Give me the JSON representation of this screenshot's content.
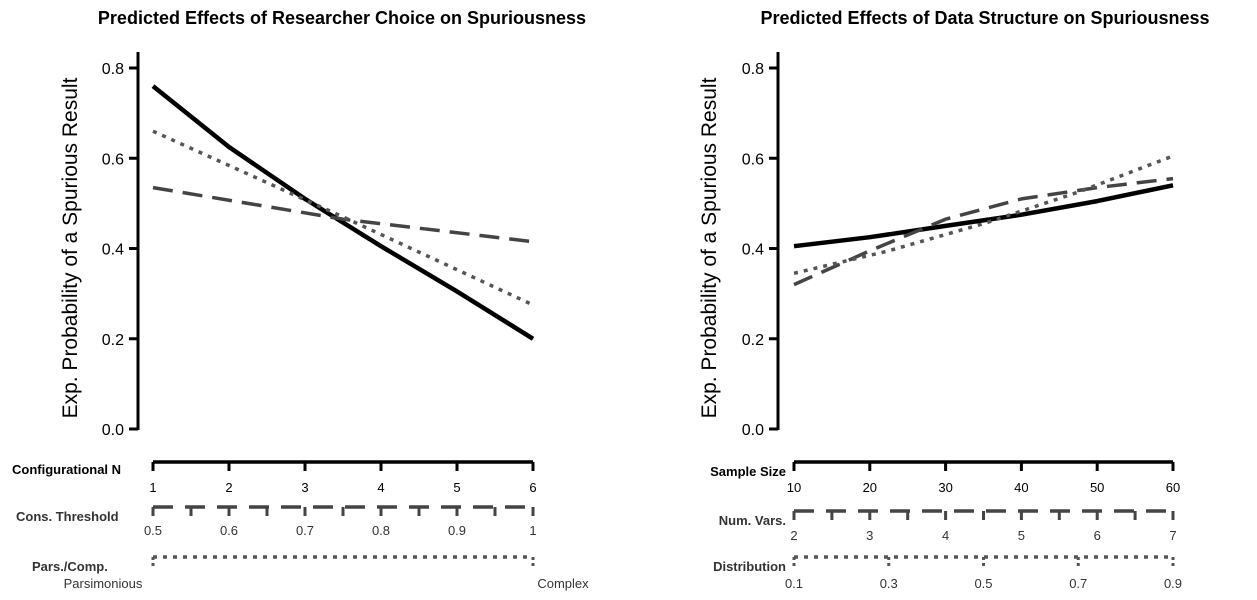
{
  "colors": {
    "solid": "#000000",
    "dashed": "#444444",
    "dotted": "#555555"
  },
  "chart_data": [
    {
      "type": "line",
      "title": "Predicted Effects of Researcher Choice on Spuriousness",
      "ylabel": "Exp. Probability of a Spurious Result",
      "ylim": [
        0,
        0.8
      ],
      "yticks": [
        "0.0",
        "0.2",
        "0.4",
        "0.6",
        "0.8"
      ],
      "axes": [
        {
          "label": "Configurational N",
          "style": "solid",
          "ticks": [
            "1",
            "2",
            "3",
            "4",
            "5",
            "6"
          ]
        },
        {
          "label": "Cons. Threshold",
          "style": "dashed",
          "ticks": [
            "0.5",
            "0.6",
            "0.7",
            "0.8",
            "0.9",
            "1"
          ]
        },
        {
          "label": "Pars./Comp.",
          "style": "dotted",
          "ticks": [
            "Parsimonious",
            "Complex"
          ]
        }
      ],
      "series": [
        {
          "style": "solid",
          "x": [
            0,
            0.2,
            0.4,
            0.6,
            0.8,
            1.0
          ],
          "values": [
            0.76,
            0.625,
            0.51,
            0.405,
            0.305,
            0.2
          ]
        },
        {
          "style": "dashed",
          "x": [
            0,
            0.5,
            1.0
          ],
          "values": [
            0.535,
            0.465,
            0.415
          ]
        },
        {
          "style": "dotted",
          "x": [
            0,
            0.5,
            1.0
          ],
          "values": [
            0.66,
            0.47,
            0.275
          ]
        }
      ]
    },
    {
      "type": "line",
      "title": "Predicted Effects of Data Structure on Spuriousness",
      "ylabel": "Exp. Probability of a Spurious Result",
      "ylim": [
        0,
        0.8
      ],
      "yticks": [
        "0.0",
        "0.2",
        "0.4",
        "0.6",
        "0.8"
      ],
      "axes": [
        {
          "label": "Sample Size",
          "style": "solid",
          "ticks": [
            "10",
            "20",
            "30",
            "40",
            "50",
            "60"
          ]
        },
        {
          "label": "Num. Vars.",
          "style": "dashed",
          "ticks": [
            "2",
            "3",
            "4",
            "5",
            "6",
            "7"
          ]
        },
        {
          "label": "Distribution",
          "style": "dotted",
          "ticks": [
            "0.1",
            "0.3",
            "0.5",
            "0.7",
            "0.9"
          ]
        }
      ],
      "series": [
        {
          "style": "solid",
          "x": [
            0,
            0.2,
            0.4,
            0.6,
            0.8,
            1.0
          ],
          "values": [
            0.405,
            0.425,
            0.45,
            0.475,
            0.505,
            0.54
          ]
        },
        {
          "style": "dashed",
          "x": [
            0,
            0.2,
            0.4,
            0.6,
            0.8,
            1.0
          ],
          "values": [
            0.32,
            0.395,
            0.465,
            0.51,
            0.535,
            0.555
          ]
        },
        {
          "style": "dotted",
          "x": [
            0,
            0.25,
            0.5,
            0.75,
            1.0
          ],
          "values": [
            0.345,
            0.395,
            0.455,
            0.525,
            0.605
          ]
        }
      ]
    }
  ]
}
